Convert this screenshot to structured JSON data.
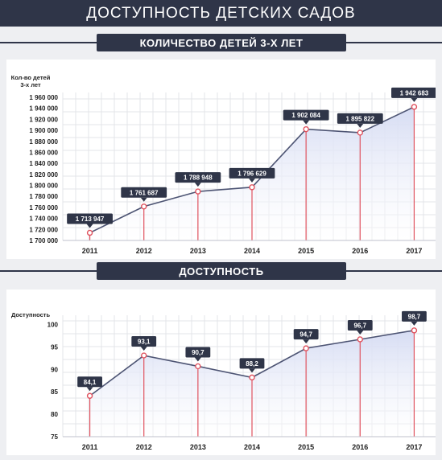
{
  "header": {
    "title": "ДОСТУПНОСТЬ ДЕТСКИХ САДОВ"
  },
  "sections": [
    {
      "title": "КОЛИЧЕСТВО ДЕТЕЙ 3-Х ЛЕТ"
    },
    {
      "title": "ДОСТУПНОСТЬ"
    }
  ],
  "colors": {
    "dark": "#2f3548",
    "accent": "#e0535f",
    "line": "#4d5473",
    "fill": "#d6dcf3"
  },
  "chart_data": [
    {
      "type": "area",
      "ylabel": "Кол-во детей 3-х лет",
      "categories": [
        "2011",
        "2012",
        "2013",
        "2014",
        "2015",
        "2016",
        "2017"
      ],
      "values": [
        1713947,
        1761687,
        1788948,
        1796629,
        1902084,
        1895822,
        1942683
      ],
      "value_labels": [
        "1 713 947",
        "1 761 687",
        "1 788 948",
        "1 796 629",
        "1 902 084",
        "1 895 822",
        "1 942 683"
      ],
      "ylim": [
        1700000,
        1960000
      ],
      "yticks": [
        1700000,
        1720000,
        1740000,
        1760000,
        1780000,
        1800000,
        1820000,
        1840000,
        1860000,
        1880000,
        1900000,
        1920000,
        1940000,
        1960000
      ],
      "ytick_labels": [
        "1 700 000",
        "1 720 000",
        "1 740 000",
        "1 760 000",
        "1 780 000",
        "1 800 000",
        "1 820 000",
        "1 840 000",
        "1 860 000",
        "1 880 000",
        "1 900 000",
        "1 920 000",
        "1 940 000",
        "1 960 000"
      ],
      "grid": true
    },
    {
      "type": "area",
      "ylabel": "Доступность",
      "categories": [
        "2011",
        "2012",
        "2013",
        "2014",
        "2015",
        "2016",
        "2017"
      ],
      "values": [
        84.1,
        93.1,
        90.7,
        88.2,
        94.7,
        96.7,
        98.7
      ],
      "value_labels": [
        "84,1",
        "93,1",
        "90,7",
        "88,2",
        "94,7",
        "96,7",
        "98,7"
      ],
      "ylim": [
        75,
        101
      ],
      "yticks": [
        75,
        80,
        85,
        90,
        95,
        100
      ],
      "ytick_labels": [
        "75",
        "80",
        "85",
        "90",
        "95",
        "100"
      ],
      "grid": true
    }
  ]
}
